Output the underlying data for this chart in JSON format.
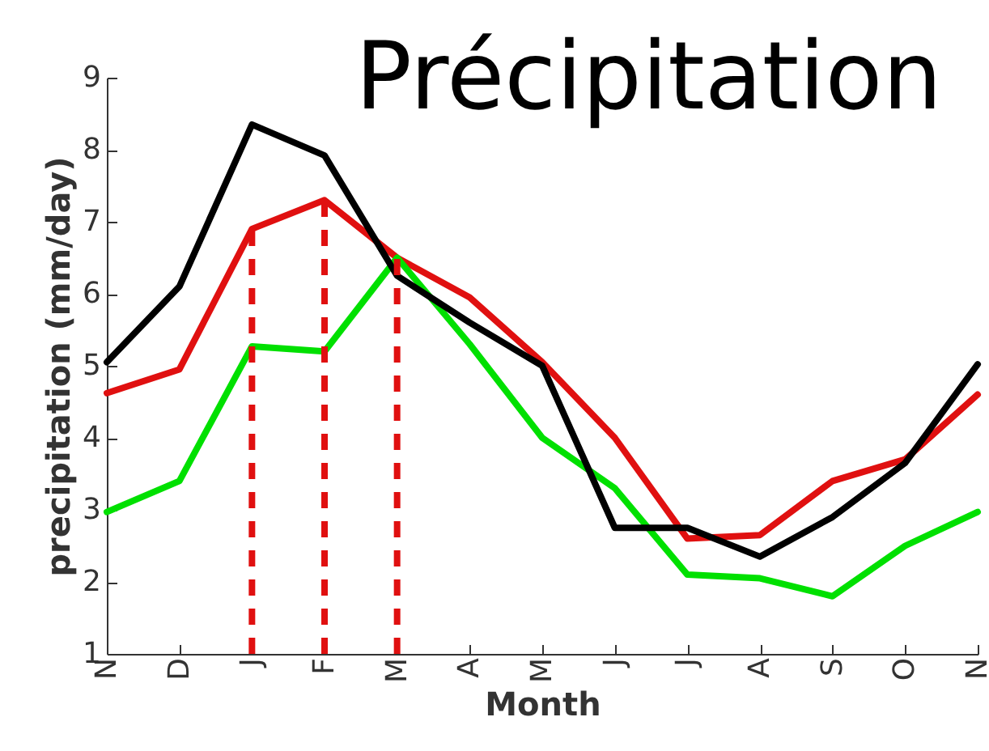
{
  "chart_data": {
    "type": "line",
    "title": "Précipitation",
    "xlabel": "Month",
    "ylabel": "precipitation (mm/day)",
    "categories": [
      "N",
      "D",
      "J",
      "F",
      "M",
      "A",
      "M",
      "J",
      "J",
      "A",
      "S",
      "O",
      "N"
    ],
    "series": [
      {
        "color": "#e01010",
        "values": [
          4.62,
          4.95,
          6.9,
          7.3,
          6.5,
          5.95,
          5.05,
          4.0,
          2.6,
          2.65,
          3.4,
          3.7,
          4.6
        ]
      },
      {
        "color": "#00e000",
        "values": [
          2.97,
          3.4,
          5.27,
          5.2,
          6.5,
          5.3,
          4.0,
          3.3,
          2.1,
          2.05,
          1.8,
          2.5,
          2.97
        ]
      },
      {
        "color": "#000000",
        "values": [
          5.05,
          6.1,
          8.35,
          7.92,
          6.25,
          5.6,
          5.0,
          2.75,
          2.75,
          2.35,
          2.9,
          3.65,
          5.02
        ]
      }
    ],
    "ylim": [
      1,
      9
    ],
    "yticks": [
      1,
      2,
      3,
      4,
      5,
      6,
      7,
      8,
      9
    ],
    "grid": false,
    "line_style": "solid",
    "ref_lines": [
      {
        "axis": "x",
        "value": "J",
        "color": "#e01010",
        "line_style": "dashed"
      },
      {
        "axis": "x",
        "value": "F",
        "color": "#e01010",
        "line_style": "dashed"
      },
      {
        "axis": "x",
        "value": "M",
        "color": "#e01010",
        "line_style": "dashed"
      }
    ]
  }
}
